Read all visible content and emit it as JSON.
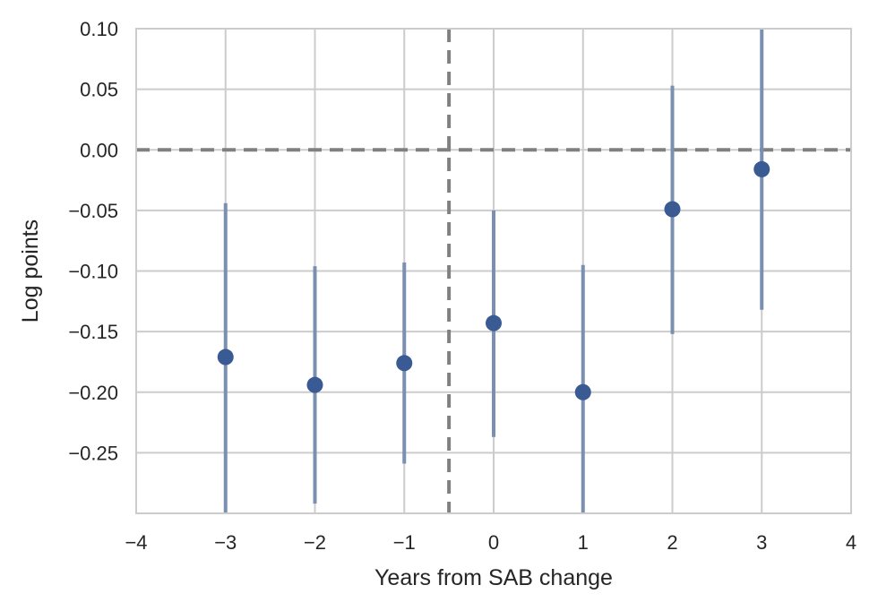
{
  "chart_data": {
    "type": "scatter",
    "title": "",
    "xlabel": "Years from SAB change",
    "ylabel": "Log points",
    "xlim": [
      -4,
      4
    ],
    "ylim": [
      -0.3,
      0.1
    ],
    "xticks": [
      -4,
      -3,
      -2,
      -1,
      0,
      1,
      2,
      3,
      4
    ],
    "xtick_labels": [
      "−4",
      "−3",
      "−2",
      "−1",
      "0",
      "1",
      "2",
      "3",
      "4"
    ],
    "yticks": [
      0.1,
      0.05,
      0.0,
      -0.05,
      -0.1,
      -0.15,
      -0.2,
      -0.25
    ],
    "ytick_labels": [
      "0.10",
      "0.05",
      "0.00",
      "−0.05",
      "−0.10",
      "−0.15",
      "−0.20",
      "−0.25"
    ],
    "grid": true,
    "reference_lines": [
      {
        "orientation": "horizontal",
        "value": 0.0,
        "style": "dashed"
      },
      {
        "orientation": "vertical",
        "value": -0.5,
        "style": "dashed"
      }
    ],
    "series": [
      {
        "x": [
          -3,
          -2,
          -1,
          0,
          1,
          2,
          3
        ],
        "y": [
          -0.171,
          -0.194,
          -0.176,
          -0.143,
          -0.2,
          -0.049,
          -0.016
        ],
        "ci_low": [
          -0.3,
          -0.292,
          -0.259,
          -0.237,
          -0.3,
          -0.152,
          -0.132
        ],
        "ci_high": [
          -0.044,
          -0.096,
          -0.093,
          -0.05,
          -0.095,
          0.053,
          0.1
        ]
      }
    ],
    "colors": {
      "marker": "#3a5a94",
      "errorbar": "#7a8fb2",
      "grid": "#cccccc",
      "refline": "#808080"
    }
  }
}
